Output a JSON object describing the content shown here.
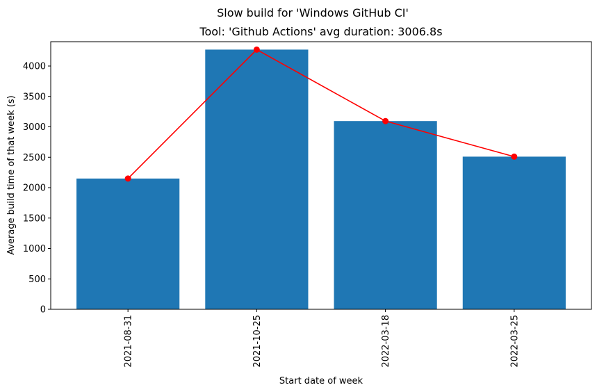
{
  "chart_data": {
    "type": "bar",
    "suptitle": "Slow build for 'Windows GitHub CI'",
    "title": "Tool: 'Github Actions' avg duration: 3006.8s",
    "xlabel": "Start date of week",
    "ylabel": "Average build time of that week (s)",
    "categories": [
      "2021-08-31",
      "2021-10-25",
      "2022-03-18",
      "2022-03-25"
    ],
    "series": [
      {
        "type": "bar",
        "values": [
          2150,
          4270,
          3095,
          2510
        ],
        "color": "#1f77b4"
      },
      {
        "type": "line",
        "values": [
          2150,
          4270,
          3095,
          2510
        ],
        "color": "#ff0000",
        "marker": "circle"
      }
    ],
    "ylim": [
      0,
      4400
    ],
    "yticks": [
      "0",
      "500",
      "1000",
      "1500",
      "2000",
      "2500",
      "3000",
      "3500",
      "4000"
    ],
    "grid": false,
    "legend": "none"
  }
}
